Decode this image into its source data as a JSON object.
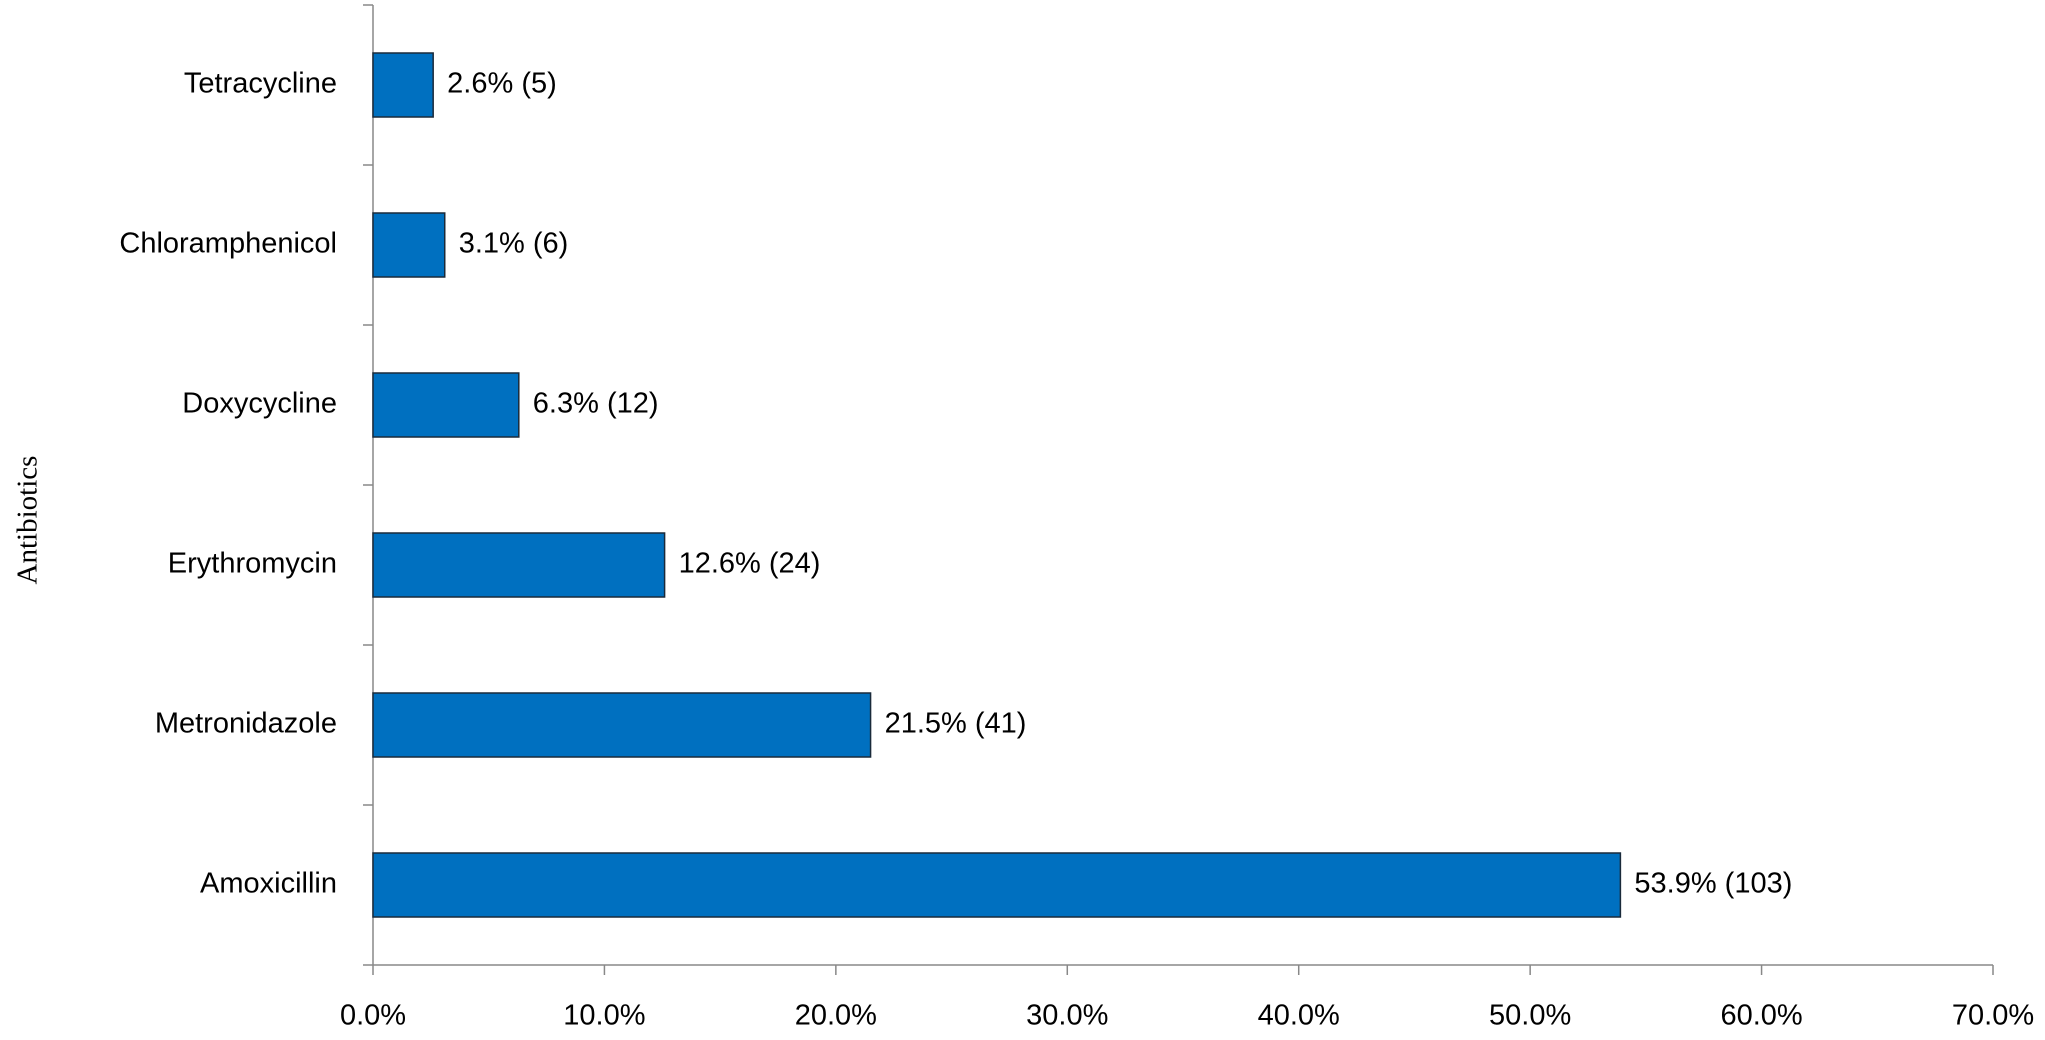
{
  "chart_data": {
    "type": "barh",
    "y_label": "Antibiotics",
    "categories": [
      "Amoxicillin",
      "Metronidazole",
      "Erythromycin",
      "Doxycycline",
      "Chloramphenicol",
      "Tetracycline"
    ],
    "values": [
      53.9,
      21.5,
      12.6,
      6.3,
      3.1,
      2.6
    ],
    "value_labels": [
      "53.9% (103)",
      "21.5% (41)",
      "12.6% (24)",
      "6.3% (12)",
      "3.1% (6)",
      "2.6% (5)"
    ],
    "color": "#0070c0",
    "xlim": [
      0,
      70
    ],
    "xticks": [
      {
        "value": 0,
        "label": "0.0%"
      },
      {
        "value": 10,
        "label": "10.0%"
      },
      {
        "value": 20,
        "label": "20.0%"
      },
      {
        "value": 30,
        "label": "30.0%"
      },
      {
        "value": 40,
        "label": "40.0%"
      },
      {
        "value": 50,
        "label": "50.0%"
      },
      {
        "value": 60,
        "label": "60.0%"
      },
      {
        "value": 70,
        "label": "70.0%"
      }
    ],
    "grid": false
  }
}
